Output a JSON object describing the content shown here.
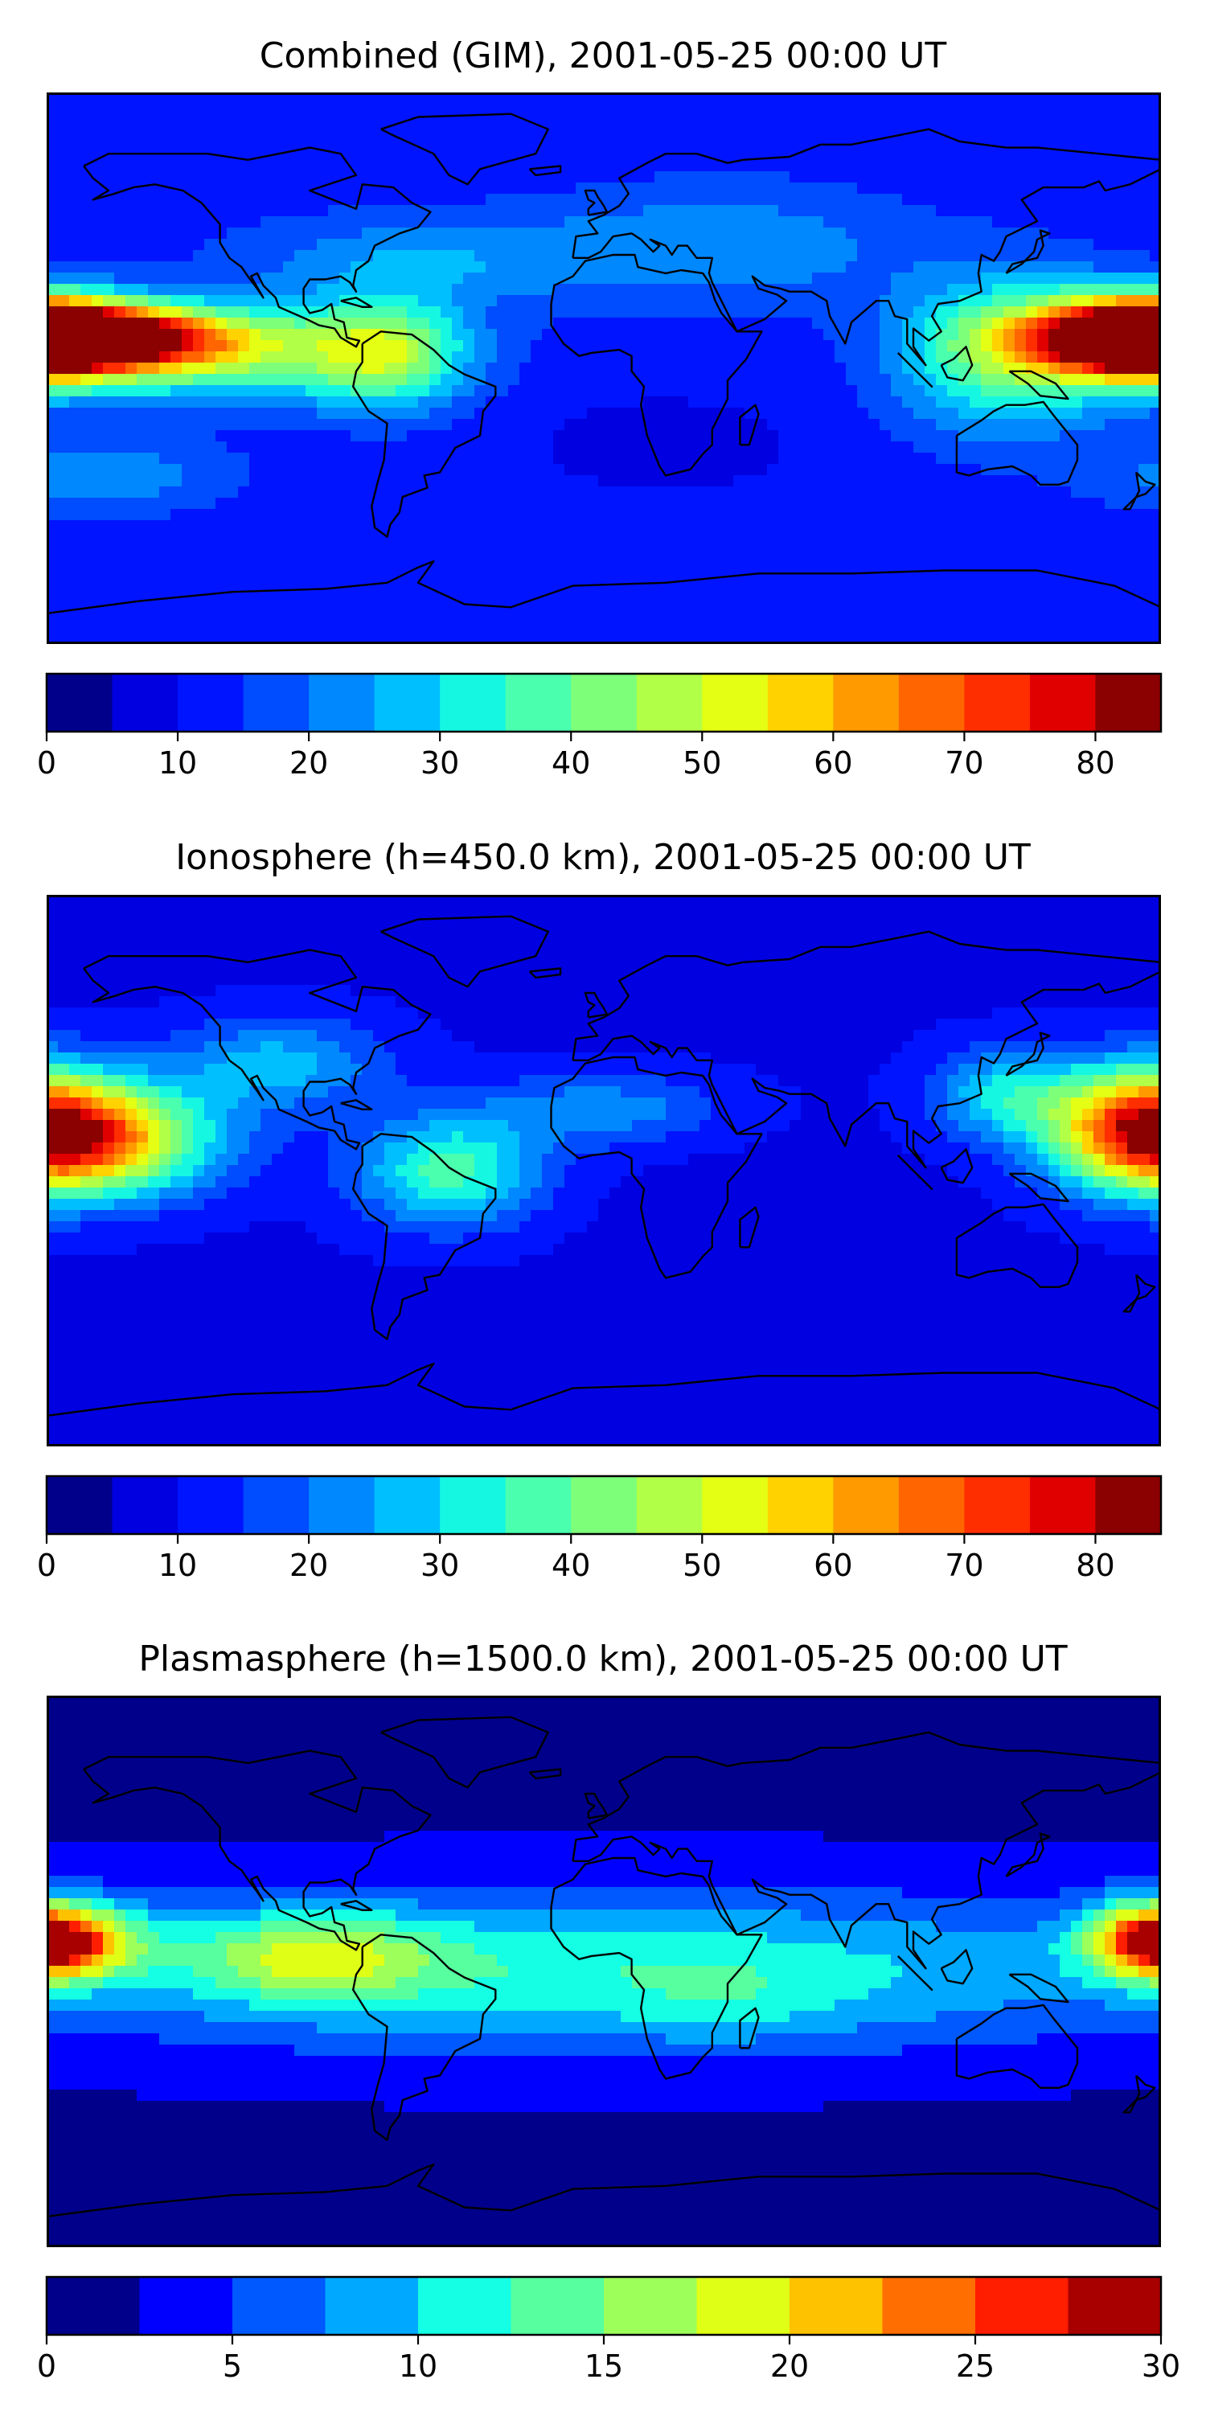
{
  "panels": [
    {
      "title": "Combined (GIM), 2001-05-25 00:00 UT",
      "colorbar": {
        "min": 0,
        "max": 85,
        "step": 5,
        "ticks": [
          "0",
          "10",
          "20",
          "30",
          "40",
          "50",
          "60",
          "70",
          "80"
        ],
        "tick_values": [
          0,
          10,
          20,
          30,
          40,
          50,
          60,
          70,
          80
        ]
      },
      "field": {
        "background": 12,
        "blobs": [
          {
            "lon": -170,
            "lat": 10,
            "rlon": 45,
            "rlat": 10,
            "amp": 70
          },
          {
            "lon": -125,
            "lat": 5,
            "rlon": 60,
            "rlat": 15,
            "amp": 30
          },
          {
            "lon": -70,
            "lat": 5,
            "rlon": 25,
            "rlat": 18,
            "amp": 28
          },
          {
            "lon": 175,
            "lat": 10,
            "rlon": 30,
            "rlat": 14,
            "amp": 62
          },
          {
            "lon": 130,
            "lat": 5,
            "rlon": 35,
            "rlat": 25,
            "amp": 30
          },
          {
            "lon": -60,
            "lat": 35,
            "rlon": 60,
            "rlat": 15,
            "amp": 12
          },
          {
            "lon": 40,
            "lat": 40,
            "rlon": 60,
            "rlat": 20,
            "amp": 12
          },
          {
            "lon": -160,
            "lat": -35,
            "rlon": 40,
            "rlat": 12,
            "amp": 12
          },
          {
            "lon": 20,
            "lat": -25,
            "rlon": 40,
            "rlat": 15,
            "amp": -5
          }
        ]
      }
    },
    {
      "title": "Ionosphere  (h=450.0 km), 2001-05-25 00:00 UT",
      "colorbar": {
        "min": 0,
        "max": 85,
        "step": 5,
        "ticks": [
          "0",
          "10",
          "20",
          "30",
          "40",
          "50",
          "60",
          "70",
          "80"
        ],
        "tick_values": [
          0,
          10,
          20,
          30,
          40,
          50,
          60,
          70,
          80
        ]
      },
      "field": {
        "background": 9,
        "blobs": [
          {
            "lon": -165,
            "lat": 10,
            "rlon": 40,
            "rlat": 18,
            "amp": 48
          },
          {
            "lon": -105,
            "lat": 35,
            "rlon": 35,
            "rlat": 15,
            "amp": 18
          },
          {
            "lon": -50,
            "lat": 0,
            "rlon": 30,
            "rlat": 18,
            "amp": 28
          },
          {
            "lon": 175,
            "lat": 15,
            "rlon": 30,
            "rlat": 20,
            "amp": 45
          },
          {
            "lon": 130,
            "lat": 25,
            "rlon": 25,
            "rlat": 15,
            "amp": 20
          },
          {
            "lon": 0,
            "lat": 20,
            "rlon": 40,
            "rlat": 12,
            "amp": 14
          },
          {
            "lon": 60,
            "lat": -30,
            "rlon": 40,
            "rlat": 25,
            "amp": -4
          }
        ]
      }
    },
    {
      "title": "Plasmasphere (h=1500.0 km), 2001-05-25 00:00 UT",
      "colorbar": {
        "min": 0,
        "max": 30,
        "step": 2.5,
        "ticks": [
          "0",
          "5",
          "10",
          "15",
          "20",
          "25",
          "30"
        ],
        "tick_values": [
          0,
          5,
          10,
          15,
          20,
          25,
          30
        ]
      },
      "field": {
        "background": 2,
        "blobs": [
          {
            "lon": 0,
            "lat": 0,
            "rlon": 200,
            "rlat": 26,
            "amp": 10
          },
          {
            "lon": -175,
            "lat": 10,
            "rlon": 25,
            "rlat": 12,
            "amp": 15
          },
          {
            "lon": -95,
            "lat": 5,
            "rlon": 40,
            "rlat": 14,
            "amp": 10
          },
          {
            "lon": 178,
            "lat": 10,
            "rlon": 22,
            "rlat": 14,
            "amp": 13
          },
          {
            "lon": 40,
            "lat": -10,
            "rlon": 35,
            "rlat": 14,
            "amp": 2
          }
        ]
      }
    }
  ],
  "colors": {
    "jet17": [
      "#00008b",
      "#0000e0",
      "#0014ff",
      "#004cff",
      "#0088ff",
      "#00bfff",
      "#16f7e2",
      "#4affae",
      "#7dff7a",
      "#b1ff46",
      "#e4ff13",
      "#ffd200",
      "#ff9a00",
      "#ff6500",
      "#ff2e00",
      "#e00000",
      "#8b0000"
    ],
    "jet12": [
      "#00008b",
      "#0000ff",
      "#0058ff",
      "#00a8ff",
      "#14ffe3",
      "#57ff9f",
      "#9cff5a",
      "#e0ff17",
      "#ffc200",
      "#ff6e00",
      "#ff1e00",
      "#a80000"
    ],
    "coastline": "#000000",
    "frame": "#000000"
  }
}
